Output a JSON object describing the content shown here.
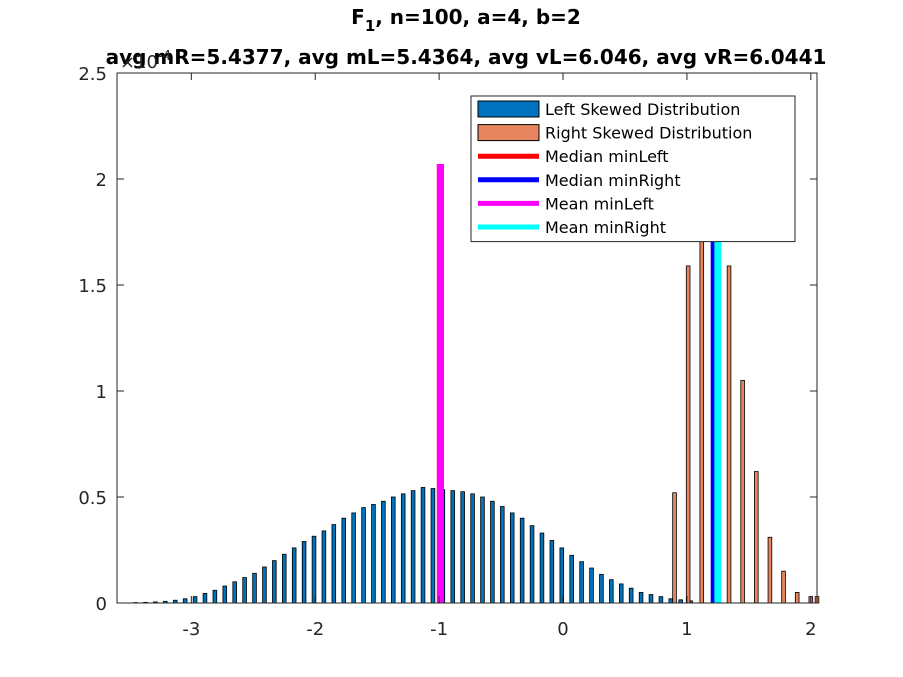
{
  "chart_data": {
    "type": "bar",
    "title_line1_main": "F",
    "title_line1_sub": "1",
    "title_line1_rest": ", n=100, a=4, b=2",
    "title_line2": "avg mR=5.4377, avg mL=5.4364, avg vL=6.046, avg vR=6.0441",
    "y_exponent_label": "×10",
    "y_exponent_power": "-4",
    "xlim": [
      -3.6,
      2.05
    ],
    "ylim": [
      0,
      2.5
    ],
    "x_ticks": [
      -3,
      -2,
      -1,
      0,
      1,
      2
    ],
    "x_tick_labels": [
      "-3",
      "-2",
      "-1",
      "0",
      "1",
      "2"
    ],
    "y_ticks": [
      0,
      0.5,
      1,
      1.5,
      2,
      2.5
    ],
    "y_tick_labels": [
      "0",
      "0.5",
      "1",
      "1.5",
      "2",
      "2.5"
    ],
    "bar_width": 0.03,
    "series": [
      {
        "name": "Left Skewed Distribution",
        "color": "#0072BD",
        "x": [
          -3.45,
          -3.37,
          -3.29,
          -3.21,
          -3.13,
          -3.05,
          -2.97,
          -2.89,
          -2.81,
          -2.73,
          -2.65,
          -2.57,
          -2.49,
          -2.41,
          -2.33,
          -2.25,
          -2.17,
          -2.09,
          -2.01,
          -1.93,
          -1.85,
          -1.77,
          -1.69,
          -1.61,
          -1.53,
          -1.45,
          -1.37,
          -1.29,
          -1.21,
          -1.13,
          -1.05,
          -0.97,
          -0.89,
          -0.81,
          -0.73,
          -0.65,
          -0.57,
          -0.49,
          -0.41,
          -0.33,
          -0.25,
          -0.17,
          -0.09,
          -0.01,
          0.07,
          0.15,
          0.23,
          0.31,
          0.39,
          0.47,
          0.55,
          0.63,
          0.71,
          0.79,
          0.87,
          0.95,
          1.03
        ],
        "values": [
          0.002,
          0.003,
          0.005,
          0.008,
          0.013,
          0.02,
          0.03,
          0.045,
          0.06,
          0.08,
          0.1,
          0.12,
          0.14,
          0.17,
          0.2,
          0.23,
          0.26,
          0.29,
          0.315,
          0.34,
          0.37,
          0.4,
          0.425,
          0.45,
          0.465,
          0.48,
          0.5,
          0.515,
          0.53,
          0.545,
          0.54,
          0.535,
          0.53,
          0.525,
          0.515,
          0.5,
          0.48,
          0.455,
          0.425,
          0.4,
          0.365,
          0.33,
          0.295,
          0.26,
          0.225,
          0.195,
          0.165,
          0.135,
          0.11,
          0.09,
          0.07,
          0.05,
          0.04,
          0.03,
          0.02,
          0.015,
          0.01
        ]
      },
      {
        "name": "Right Skewed Distribution",
        "color": "#E6855E",
        "x": [
          0.9,
          1.01,
          1.12,
          1.23,
          1.34,
          1.45,
          1.56,
          1.67,
          1.78,
          1.89,
          2.0,
          2.05
        ],
        "values": [
          0.52,
          1.59,
          2.18,
          2.3,
          1.59,
          1.05,
          0.62,
          0.31,
          0.15,
          0.05,
          0.03,
          0.03
        ]
      }
    ],
    "lines": [
      {
        "name": "Median minLeft",
        "color": "#FF0000",
        "x": -0.99,
        "y_top": 2.07
      },
      {
        "name": "Median minRight",
        "color": "#0000FF",
        "x": 1.22,
        "y_top": 2.2
      },
      {
        "name": "Mean minLeft",
        "color": "#FF00FF",
        "x": -0.99,
        "y_top": 2.07
      },
      {
        "name": "Mean minRight",
        "color": "#00FFFF",
        "x": 1.25,
        "y_top": 2.2
      }
    ],
    "legend": {
      "location": "top-right",
      "entries": [
        {
          "label": "Left Skewed Distribution",
          "kind": "patch",
          "color": "#0072BD"
        },
        {
          "label": "Right Skewed Distribution",
          "kind": "patch",
          "color": "#E6855E"
        },
        {
          "label": "Median minLeft",
          "kind": "line",
          "color": "#FF0000"
        },
        {
          "label": "Median minRight",
          "kind": "line",
          "color": "#0000FF"
        },
        {
          "label": "Mean minLeft",
          "kind": "line",
          "color": "#FF00FF"
        },
        {
          "label": "Mean minRight",
          "kind": "line",
          "color": "#00FFFF"
        }
      ]
    },
    "grid": false,
    "xlabel": "",
    "ylabel": ""
  }
}
